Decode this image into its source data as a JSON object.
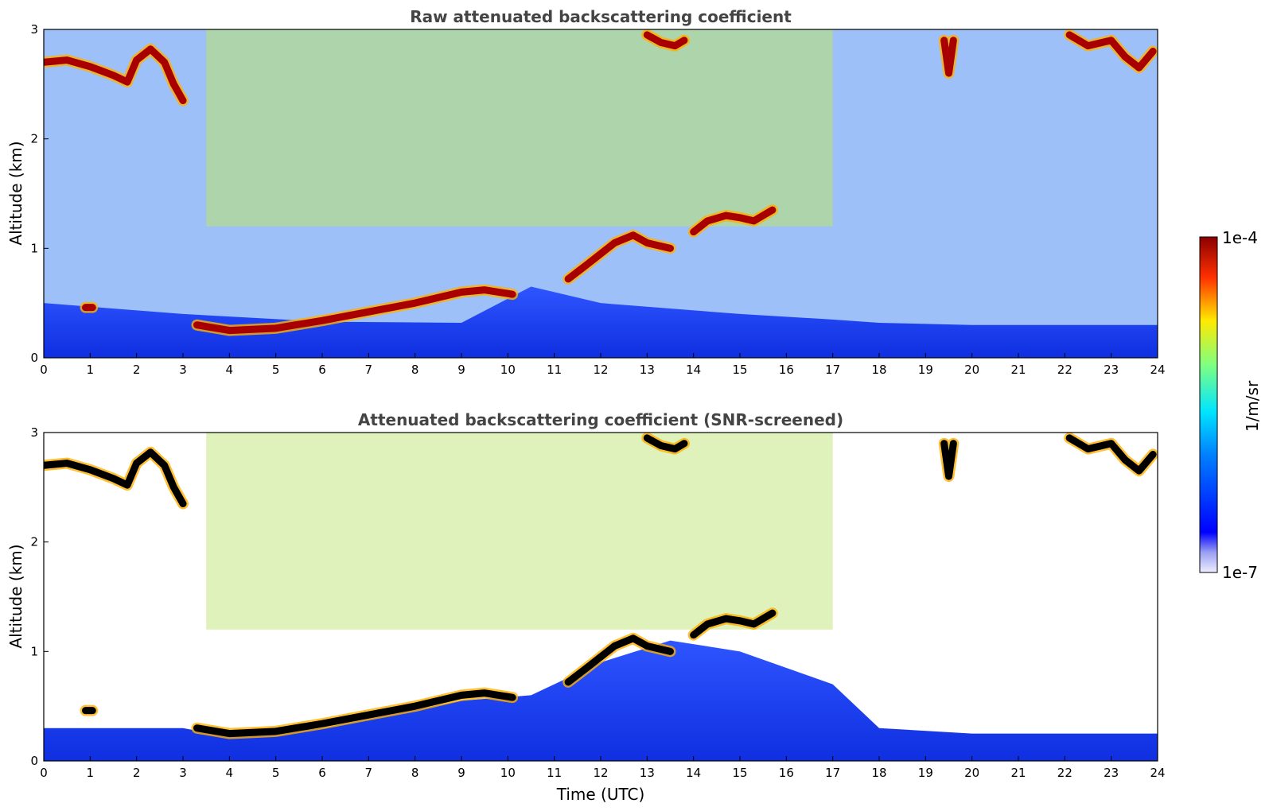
{
  "chart_data": [
    {
      "type": "heatmap",
      "title": "Raw attenuated backscattering coefficient",
      "xlabel": "",
      "ylabel": "Altitude (km)",
      "xlim": [
        0,
        24
      ],
      "ylim": [
        0,
        3
      ],
      "xticks": [
        "0",
        "1",
        "2",
        "3",
        "4",
        "5",
        "6",
        "7",
        "8",
        "9",
        "10",
        "11",
        "12",
        "13",
        "14",
        "15",
        "16",
        "17",
        "18",
        "19",
        "20",
        "21",
        "22",
        "23",
        "24"
      ],
      "yticks": [
        "0",
        "1",
        "2",
        "3"
      ],
      "screened": false,
      "features": {
        "boundary_layer_top_km": [
          [
            0,
            0.5
          ],
          [
            3,
            0.4
          ],
          [
            6,
            0.33
          ],
          [
            9,
            0.32
          ],
          [
            10.5,
            0.65
          ],
          [
            12,
            0.5
          ],
          [
            15,
            0.4
          ],
          [
            17,
            0.35
          ],
          [
            18,
            0.32
          ],
          [
            20,
            0.3
          ],
          [
            24,
            0.3
          ]
        ],
        "cloud_layers": [
          {
            "x": [
              0,
              0.5,
              1,
              1.5,
              1.8,
              2,
              2.3,
              2.6,
              2.8,
              3.0
            ],
            "y": [
              2.7,
              2.72,
              2.66,
              2.58,
              2.52,
              2.72,
              2.82,
              2.7,
              2.5,
              2.35
            ]
          },
          {
            "x": [
              0.9,
              1.05
            ],
            "y": [
              0.46,
              0.46
            ]
          },
          {
            "x": [
              3.3,
              4,
              5,
              6,
              7,
              8,
              9,
              9.5,
              10.1
            ],
            "y": [
              0.3,
              0.25,
              0.27,
              0.34,
              0.42,
              0.5,
              0.6,
              0.62,
              0.58
            ]
          },
          {
            "x": [
              11.3,
              11.7,
              12,
              12.3,
              12.7,
              13,
              13.5
            ],
            "y": [
              0.72,
              0.85,
              0.95,
              1.05,
              1.12,
              1.05,
              1.0
            ]
          },
          {
            "x": [
              14,
              14.3,
              14.7,
              15,
              15.3,
              15.7
            ],
            "y": [
              1.15,
              1.25,
              1.3,
              1.28,
              1.25,
              1.35
            ]
          },
          {
            "x": [
              13.0,
              13.3,
              13.6,
              13.8
            ],
            "y": [
              2.95,
              2.88,
              2.85,
              2.9
            ]
          },
          {
            "x": [
              19.4,
              19.5,
              19.6
            ],
            "y": [
              2.9,
              2.6,
              2.9
            ]
          },
          {
            "x": [
              22.1,
              22.5,
              23,
              23.3,
              23.6,
              23.9
            ],
            "y": [
              2.95,
              2.85,
              2.9,
              2.75,
              2.65,
              2.8
            ]
          }
        ]
      }
    },
    {
      "type": "heatmap",
      "title": "Attenuated backscattering coefficient (SNR-screened)",
      "xlabel": "Time (UTC)",
      "ylabel": "Altitude (km)",
      "xlim": [
        0,
        24
      ],
      "ylim": [
        0,
        3
      ],
      "xticks": [
        "0",
        "1",
        "2",
        "3",
        "4",
        "5",
        "6",
        "7",
        "8",
        "9",
        "10",
        "11",
        "12",
        "13",
        "14",
        "15",
        "16",
        "17",
        "18",
        "19",
        "20",
        "21",
        "22",
        "23",
        "24"
      ],
      "yticks": [
        "0",
        "1",
        "2",
        "3"
      ],
      "screened": true,
      "features": {
        "boundary_layer_top_km": [
          [
            0,
            0.3
          ],
          [
            3,
            0.3
          ],
          [
            4,
            0.22
          ],
          [
            6,
            0.3
          ],
          [
            9,
            0.55
          ],
          [
            10.5,
            0.6
          ],
          [
            12,
            0.9
          ],
          [
            13.5,
            1.1
          ],
          [
            15,
            1.0
          ],
          [
            17,
            0.7
          ],
          [
            18,
            0.3
          ],
          [
            20,
            0.25
          ],
          [
            24,
            0.25
          ]
        ],
        "cloud_layers": [
          {
            "x": [
              0,
              0.5,
              1,
              1.5,
              1.8,
              2,
              2.3,
              2.6,
              2.8,
              3.0
            ],
            "y": [
              2.7,
              2.72,
              2.66,
              2.58,
              2.52,
              2.72,
              2.82,
              2.7,
              2.5,
              2.35
            ]
          },
          {
            "x": [
              0.9,
              1.05
            ],
            "y": [
              0.46,
              0.46
            ]
          },
          {
            "x": [
              3.3,
              4,
              5,
              6,
              7,
              8,
              9,
              9.5,
              10.1
            ],
            "y": [
              0.3,
              0.25,
              0.27,
              0.34,
              0.42,
              0.5,
              0.6,
              0.62,
              0.58
            ]
          },
          {
            "x": [
              11.3,
              11.7,
              12,
              12.3,
              12.7,
              13,
              13.5
            ],
            "y": [
              0.72,
              0.85,
              0.95,
              1.05,
              1.12,
              1.05,
              1.0
            ]
          },
          {
            "x": [
              14,
              14.3,
              14.7,
              15,
              15.3,
              15.7
            ],
            "y": [
              1.15,
              1.25,
              1.3,
              1.28,
              1.25,
              1.35
            ]
          },
          {
            "x": [
              13.0,
              13.3,
              13.6,
              13.8
            ],
            "y": [
              2.95,
              2.88,
              2.85,
              2.9
            ]
          },
          {
            "x": [
              19.4,
              19.5,
              19.6
            ],
            "y": [
              2.9,
              2.6,
              2.9
            ]
          },
          {
            "x": [
              22.1,
              22.5,
              23,
              23.3,
              23.6,
              23.9
            ],
            "y": [
              2.95,
              2.85,
              2.9,
              2.75,
              2.65,
              2.8
            ]
          }
        ]
      }
    }
  ],
  "colorbar": {
    "label": "1/m/sr",
    "max_label": "1e-4",
    "min_label": "1e-7",
    "scale": "log",
    "colormap": "jet"
  },
  "colors": {
    "cloud_raw": "#a80000",
    "cloud_screened": "#000000",
    "boundary_layer": "#1433ff",
    "background": "#ffffff"
  }
}
